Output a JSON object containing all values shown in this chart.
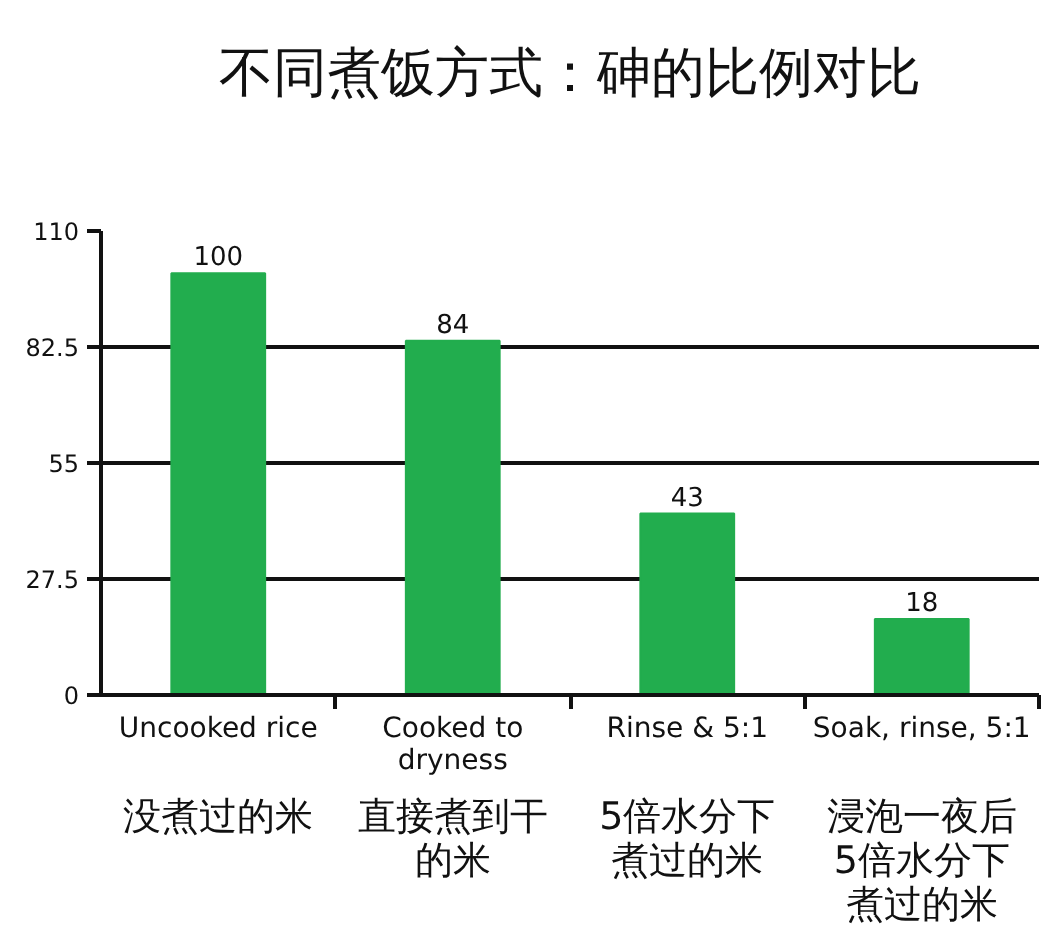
{
  "chart_data": {
    "type": "bar",
    "title": "不同煮饭方式：砷的比例对比",
    "categories": [
      "Uncooked rice",
      "Cooked to\ndryness",
      "Rinse & 5:1",
      "Soak, rinse, 5:1"
    ],
    "values": [
      100,
      84,
      43,
      18
    ],
    "color": "#22ad4e",
    "ylim": [
      0,
      110
    ],
    "yticks": [
      0,
      27.5,
      55,
      82.5,
      110
    ],
    "grid": "y",
    "data_labels": true,
    "annotations": [
      "没煮过的米",
      "直接煮到干的米",
      "5倍水分下煮过的米",
      "浸泡一夜后5倍水分下煮过的米"
    ]
  }
}
